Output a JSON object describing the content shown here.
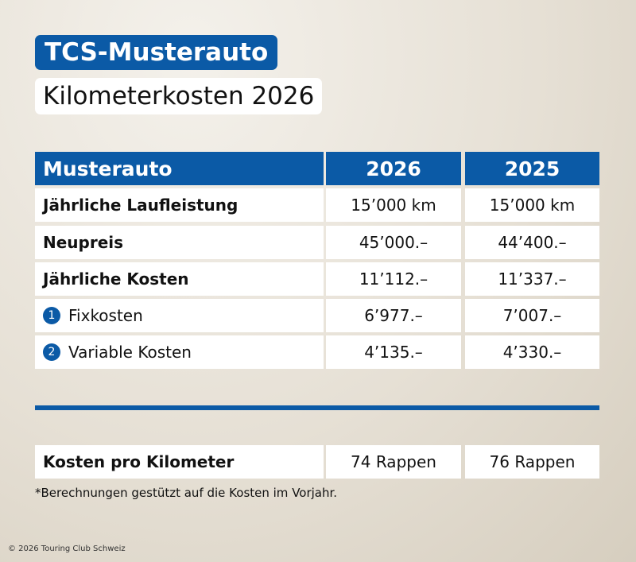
{
  "header": {
    "title": "TCS-Musterauto",
    "subtitle": "Kilometerkosten 2026"
  },
  "table": {
    "columns": [
      "Musterauto",
      "2026",
      "2025"
    ],
    "rows": [
      {
        "label": "Jährliche Laufleistung",
        "values": [
          "15’000 km",
          "15’000 km"
        ]
      },
      {
        "label": "Neupreis",
        "values": [
          "45’000.–",
          "44’400.–"
        ]
      },
      {
        "label": "Jährliche Kosten",
        "values": [
          "11’112.–",
          "11’337.–"
        ]
      },
      {
        "marker": "1",
        "label": "Fixkosten",
        "values": [
          "6’977.–",
          "7’007.–"
        ]
      },
      {
        "marker": "2",
        "label": "Variable Kosten",
        "values": [
          "4’135.–",
          "4’330.–"
        ]
      }
    ]
  },
  "summary": {
    "label": "Kosten pro Kilometer",
    "values": [
      "74 Rappen",
      "76 Rappen"
    ]
  },
  "footnote": "*Berechnungen gestützt auf die Kosten im Vorjahr.",
  "copyright": "© 2026 Touring Club Schweiz"
}
